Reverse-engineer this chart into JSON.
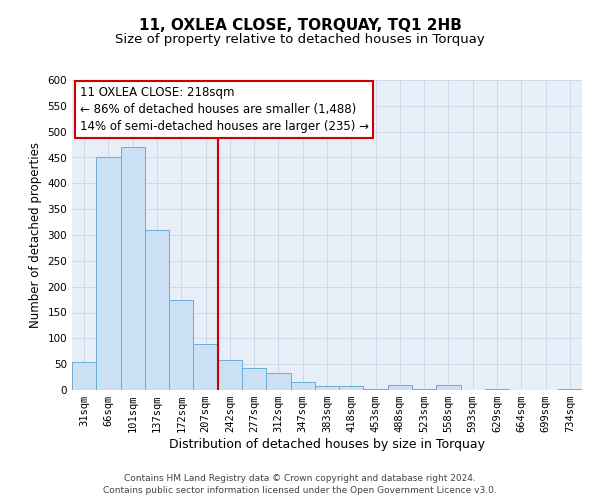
{
  "title": "11, OXLEA CLOSE, TORQUAY, TQ1 2HB",
  "subtitle": "Size of property relative to detached houses in Torquay",
  "xlabel": "Distribution of detached houses by size in Torquay",
  "ylabel": "Number of detached properties",
  "footer_line1": "Contains HM Land Registry data © Crown copyright and database right 2024.",
  "footer_line2": "Contains public sector information licensed under the Open Government Licence v3.0.",
  "categories": [
    "31sqm",
    "66sqm",
    "101sqm",
    "137sqm",
    "172sqm",
    "207sqm",
    "242sqm",
    "277sqm",
    "312sqm",
    "347sqm",
    "383sqm",
    "418sqm",
    "453sqm",
    "488sqm",
    "523sqm",
    "558sqm",
    "593sqm",
    "629sqm",
    "664sqm",
    "699sqm",
    "734sqm"
  ],
  "values": [
    55,
    450,
    470,
    310,
    175,
    90,
    58,
    42,
    32,
    15,
    8,
    7,
    2,
    9,
    2,
    9,
    0,
    2,
    0,
    0,
    2
  ],
  "bar_color": "#cce0f5",
  "bar_edge_color": "#6aaed6",
  "grid_color": "#d0d8e8",
  "background_color": "#e8eef8",
  "vline_x_index": 5.5,
  "ylim": [
    0,
    600
  ],
  "yticks": [
    0,
    50,
    100,
    150,
    200,
    250,
    300,
    350,
    400,
    450,
    500,
    550,
    600
  ],
  "vline_color": "#cc0000",
  "box_edge_color": "#cc0000",
  "title_fontsize": 11,
  "subtitle_fontsize": 9.5,
  "xlabel_fontsize": 9,
  "ylabel_fontsize": 8.5,
  "tick_fontsize": 7.5,
  "annotation_fontsize": 8.5,
  "footer_fontsize": 6.5,
  "ann_line1": "11 OXLEA CLOSE: 218sqm",
  "ann_line2": "← 86% of detached houses are smaller (1,488)",
  "ann_line3": "14% of semi-detached houses are larger (235) →"
}
